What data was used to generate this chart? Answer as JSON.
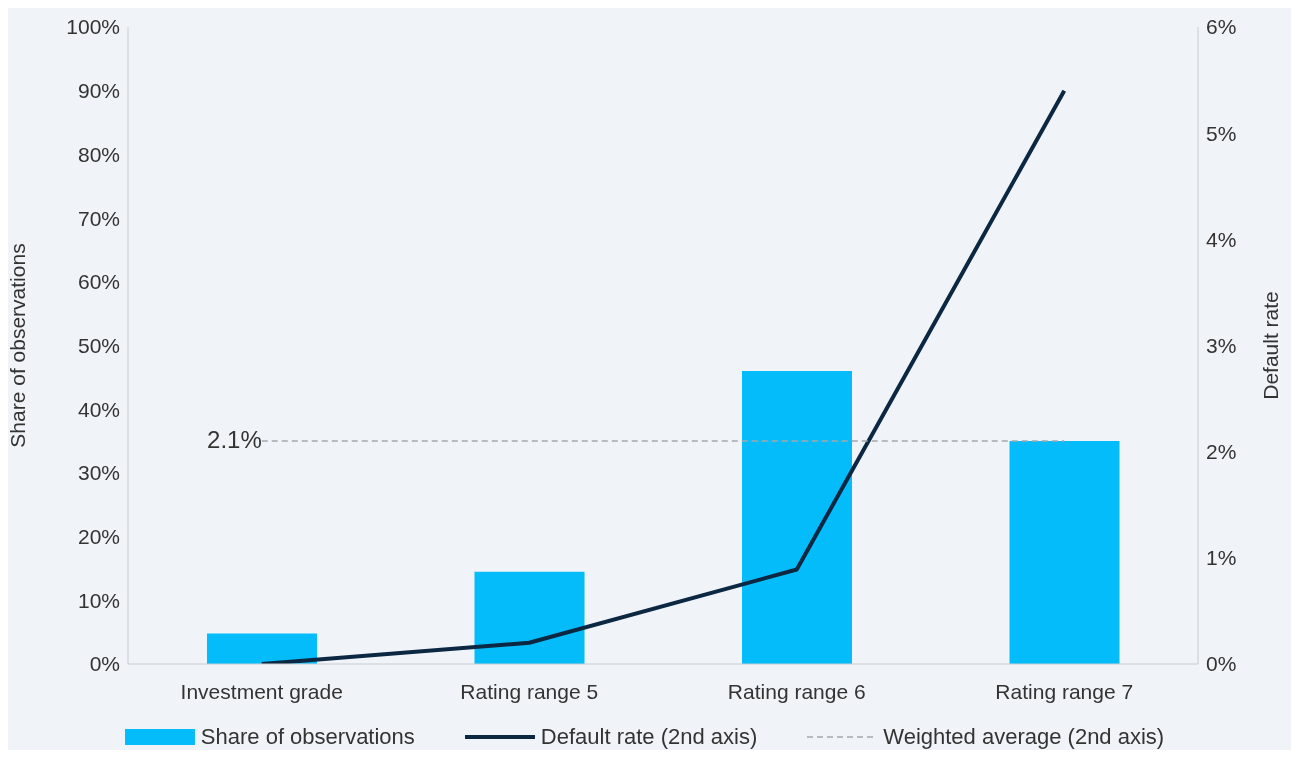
{
  "chart_data": {
    "type": "bar",
    "categories": [
      "Investment grade",
      "Rating range 5",
      "Rating range 6",
      "Rating range 7"
    ],
    "series": [
      {
        "name": "Share of observations",
        "color": "#05bcfa",
        "values": [
          4.8,
          14.5,
          46,
          35
        ]
      },
      {
        "name": "Default rate (2nd axis)",
        "type": "line",
        "axis": "y2",
        "color": "#0b2742",
        "values": [
          0,
          0.2,
          0.89,
          5.4
        ]
      },
      {
        "name": "Weighted average (2nd axis)",
        "type": "line",
        "axis": "y2",
        "color": "#a3a8ae",
        "line_style": "dashed",
        "values": [
          2.1,
          2.1,
          2.1,
          2.1
        ],
        "value_labels": [
          "2.1%",
          null,
          null,
          null
        ]
      }
    ],
    "ylabel": "Share of observations",
    "y2label": "Default rate",
    "ylim": [
      0,
      100
    ],
    "yticks": [
      {
        "value": 0,
        "label": "0%"
      },
      {
        "value": 10,
        "label": "10%"
      },
      {
        "value": 20,
        "label": "20%"
      },
      {
        "value": 30,
        "label": "30%"
      },
      {
        "value": 40,
        "label": "40%"
      },
      {
        "value": 50,
        "label": "50%"
      },
      {
        "value": 60,
        "label": "60%"
      },
      {
        "value": 70,
        "label": "70%"
      },
      {
        "value": 80,
        "label": "80%"
      },
      {
        "value": 90,
        "label": "90%"
      },
      {
        "value": 100,
        "label": "100%"
      }
    ],
    "y2lim": [
      0,
      6
    ],
    "y2ticks": [
      {
        "value": 0,
        "label": "0%"
      },
      {
        "value": 1,
        "label": "1%"
      },
      {
        "value": 2,
        "label": "2%"
      },
      {
        "value": 3,
        "label": "3%"
      },
      {
        "value": 4,
        "label": "4%"
      },
      {
        "value": 5,
        "label": "5%"
      },
      {
        "value": 6,
        "label": "6%"
      }
    ],
    "grid": false,
    "legend": "bottom",
    "marker": "none"
  }
}
